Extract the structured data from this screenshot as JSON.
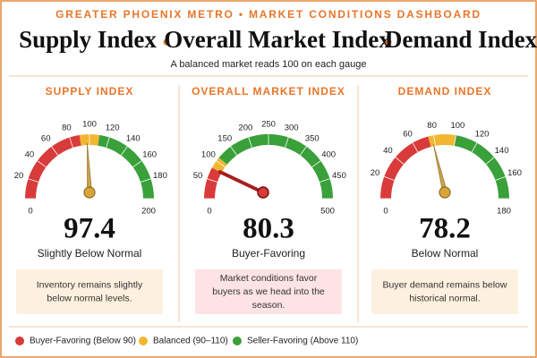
{
  "header": {
    "eyebrow": "GREATER PHOENIX METRO • MARKET CONDITIONS DASHBOARD",
    "names": [
      "Supply Index",
      "Overall Market Index",
      "Demand Index"
    ],
    "subtitle": "A balanced market reads 100 on each gauge"
  },
  "chart_data": [
    {
      "type": "gauge",
      "title": "SUPPLY INDEX",
      "value": 97.4,
      "status": "Slightly Below Normal",
      "note": "Inventory remains slightly below normal levels.",
      "note_color": "#fdf0df",
      "needle_color": "#c9a24a",
      "range": [
        0,
        200
      ],
      "ticks": [
        0,
        20,
        40,
        60,
        80,
        100,
        120,
        140,
        160,
        180,
        200
      ],
      "bands": [
        {
          "from": 0,
          "to": 90,
          "color": "#d93a3a"
        },
        {
          "from": 90,
          "to": 110,
          "color": "#f2b630"
        },
        {
          "from": 110,
          "to": 200,
          "color": "#3aa03a"
        }
      ]
    },
    {
      "type": "gauge",
      "title": "OVERALL MARKET INDEX",
      "value": 80.3,
      "status": "Buyer-Favoring",
      "note": "Market conditions favor buyers as we head into the season.",
      "note_color": "#fde3e5",
      "needle_color": "#a81e1e",
      "range": [
        0,
        500
      ],
      "ticks": [
        0,
        50,
        100,
        150,
        200,
        250,
        300,
        350,
        400,
        450,
        500
      ],
      "bands": [
        {
          "from": 0,
          "to": 80,
          "color": "#d93a3a"
        },
        {
          "from": 80,
          "to": 110,
          "color": "#f2b630"
        },
        {
          "from": 110,
          "to": 500,
          "color": "#3aa03a"
        }
      ]
    },
    {
      "type": "gauge",
      "title": "DEMAND INDEX",
      "value": 78.2,
      "status": "Below Normal",
      "note": "Buyer demand remains below historical normal.",
      "note_color": "#fdf0df",
      "needle_color": "#c9a24a",
      "range": [
        0,
        180
      ],
      "ticks": [
        0,
        20,
        40,
        60,
        80,
        100,
        120,
        140,
        160,
        180
      ],
      "bands": [
        {
          "from": 0,
          "to": 75,
          "color": "#d93a3a"
        },
        {
          "from": 75,
          "to": 100,
          "color": "#f2b630"
        },
        {
          "from": 100,
          "to": 180,
          "color": "#3aa03a"
        }
      ]
    }
  ],
  "footer": {
    "legend": [
      {
        "label": "Buyer-Favoring (Below 90)",
        "color": "#d93a3a"
      },
      {
        "label": "Balanced (90–110)",
        "color": "#f2b630"
      },
      {
        "label": "Seller-Favoring (Above 110)",
        "color": "#3aa03a"
      }
    ]
  }
}
